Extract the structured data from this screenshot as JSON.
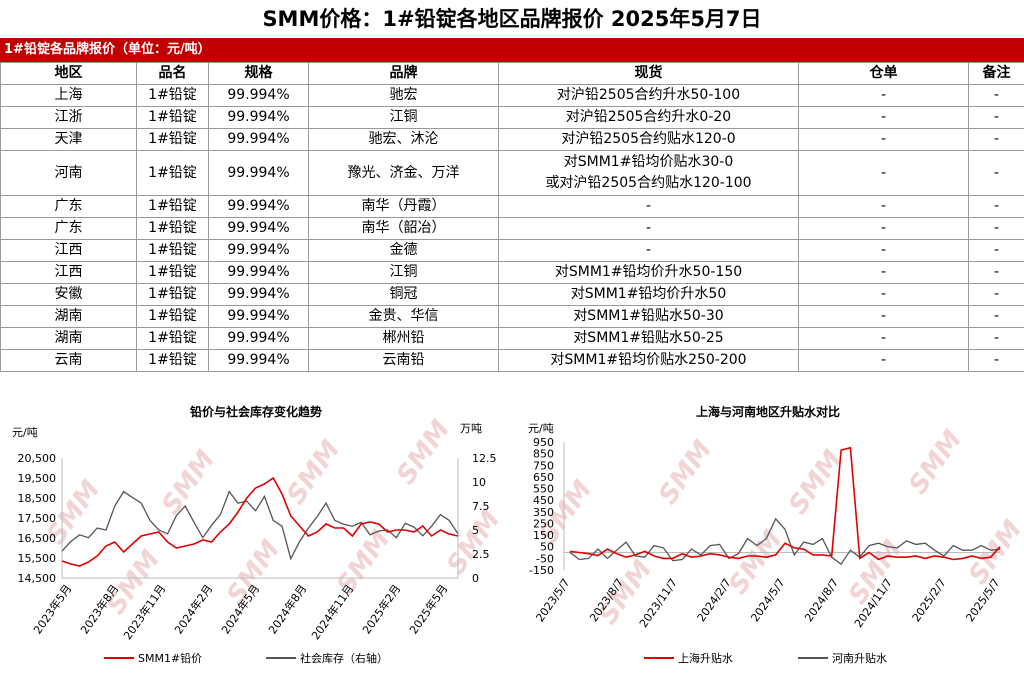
{
  "page": {
    "title": "SMM价格：1#铅锭各地区品牌报价 2025年5月7日"
  },
  "table": {
    "caption": "1#铅锭各品牌报价（单位：元/吨）",
    "headers": [
      "地区",
      "品名",
      "规格",
      "品牌",
      "现货",
      "仓单",
      "备注"
    ],
    "rows": [
      [
        "上海",
        "1#铅锭",
        "99.994%",
        "驰宏",
        "对沪铅2505合约升水50-100",
        "-",
        "-"
      ],
      [
        "江浙",
        "1#铅锭",
        "99.994%",
        "江铜",
        "对沪铅2505合约升水0-20",
        "-",
        "-"
      ],
      [
        "天津",
        "1#铅锭",
        "99.994%",
        "驰宏、沐沦",
        "对沪铅2505合约贴水120-0",
        "-",
        "-"
      ],
      [
        "河南",
        "1#铅锭",
        "99.994%",
        "豫光、济金、万洋",
        "对SMM1#铅均价贴水30-0",
        "-",
        "-"
      ],
      [
        "广东",
        "1#铅锭",
        "99.994%",
        "南华（丹霞）",
        "-",
        "-",
        "-"
      ],
      [
        "广东",
        "1#铅锭",
        "99.994%",
        "南华（韶冶）",
        "-",
        "-",
        "-"
      ],
      [
        "江西",
        "1#铅锭",
        "99.994%",
        "金德",
        "-",
        "-",
        "-"
      ],
      [
        "江西",
        "1#铅锭",
        "99.994%",
        "江铜",
        "对SMM1#铅均价升水50-150",
        "-",
        "-"
      ],
      [
        "安徽",
        "1#铅锭",
        "99.994%",
        "铜冠",
        "对SMM1#铅均价升水50",
        "-",
        "-"
      ],
      [
        "湖南",
        "1#铅锭",
        "99.994%",
        "金贵、华信",
        "对SMM1#铅贴水50-30",
        "-",
        "-"
      ],
      [
        "湖南",
        "1#铅锭",
        "99.994%",
        "郴州铅",
        "对SMM1#铅贴水50-25",
        "-",
        "-"
      ],
      [
        "云南",
        "1#铅锭",
        "99.994%",
        "云南铅",
        "对SMM1#铅均价贴水250-200",
        "-",
        "-"
      ]
    ],
    "henan_spot_line2": "或对沪铅2505合约贴水120-100"
  },
  "watermark": "SMM",
  "chart_data": [
    {
      "type": "line",
      "title": "铅价与社会库存变化趋势",
      "ylabel_left": "元/吨",
      "ylabel_right": "万吨",
      "ylim": [
        14500,
        20500
      ],
      "y_ticks": [
        "20,500",
        "19,500",
        "18,500",
        "17,500",
        "16,500",
        "15,500",
        "14,500"
      ],
      "y2lim": [
        0,
        12.5
      ],
      "y2_ticks": [
        "12.5",
        "10",
        "7.5",
        "5",
        "2.5",
        "0"
      ],
      "x_ticks": [
        "2023年5月",
        "2023年8月",
        "2023年11月",
        "2024年2月",
        "2024年5月",
        "2024年8月",
        "2024年11月",
        "2025年2月",
        "2025年5月"
      ],
      "series": [
        {
          "name": "SMM1#铅价",
          "color": "#e00000",
          "axis": "left",
          "values": [
            15350,
            15200,
            15100,
            15300,
            15600,
            16100,
            16300,
            15800,
            16200,
            16600,
            16700,
            16800,
            16300,
            16000,
            16100,
            16200,
            16400,
            16300,
            16800,
            17200,
            17800,
            18500,
            19000,
            19200,
            19500,
            18700,
            17600,
            17100,
            16600,
            16800,
            17200,
            17000,
            17000,
            16600,
            17200,
            17300,
            17200,
            16800,
            16900,
            16900,
            16800,
            17100,
            16600,
            16900,
            16700,
            16600
          ]
        },
        {
          "name": "社会库存（右轴）",
          "color": "#555555",
          "axis": "right",
          "values": [
            2.8,
            3.8,
            4.5,
            4.2,
            5.2,
            5.0,
            7.5,
            9.0,
            8.4,
            7.8,
            6.0,
            5.0,
            4.6,
            6.5,
            7.5,
            5.8,
            4.2,
            5.5,
            6.6,
            9.0,
            7.8,
            8.0,
            7.0,
            8.5,
            6.0,
            5.4,
            2.0,
            3.8,
            5.2,
            6.4,
            7.8,
            6.0,
            5.6,
            5.4,
            5.8,
            4.5,
            4.9,
            5.0,
            4.2,
            5.7,
            5.3,
            4.4,
            5.4,
            6.6,
            6.0,
            4.6
          ]
        }
      ]
    },
    {
      "type": "line",
      "title": "上海与河南地区升贴水对比",
      "ylabel": "元/吨",
      "ylim": [
        -150,
        950
      ],
      "y_ticks": [
        "950",
        "850",
        "750",
        "650",
        "550",
        "450",
        "350",
        "250",
        "150",
        "50",
        "-50",
        "-150"
      ],
      "x_ticks": [
        "2023/5/7",
        "2023/8/7",
        "2023/11/7",
        "2024/2/7",
        "2024/5/7",
        "2024/8/7",
        "2024/11/7",
        "2025/2/7",
        "2025/5/7"
      ],
      "series": [
        {
          "name": "上海升贴水",
          "color": "#e00000",
          "values": [
            10,
            0,
            -10,
            -25,
            30,
            -10,
            -40,
            -20,
            10,
            -30,
            -50,
            -50,
            -10,
            -40,
            -30,
            -10,
            -20,
            -40,
            -50,
            -30,
            -30,
            -40,
            -20,
            80,
            40,
            30,
            -20,
            -20,
            -30,
            880,
            900,
            -50,
            0,
            -60,
            -30,
            -40,
            -40,
            -30,
            -50,
            -30,
            -40,
            -60,
            -50,
            -30,
            -50,
            -40,
            50
          ]
        },
        {
          "name": "河南升贴水",
          "color": "#555555",
          "values": [
            0,
            -60,
            -50,
            30,
            -50,
            20,
            90,
            -30,
            -40,
            60,
            40,
            -70,
            -60,
            30,
            -20,
            60,
            70,
            -50,
            -10,
            120,
            60,
            120,
            290,
            200,
            -20,
            90,
            70,
            120,
            -40,
            -100,
            20,
            -40,
            60,
            80,
            50,
            40,
            100,
            70,
            80,
            20,
            -30,
            60,
            20,
            20,
            60,
            20,
            30
          ]
        }
      ]
    }
  ]
}
